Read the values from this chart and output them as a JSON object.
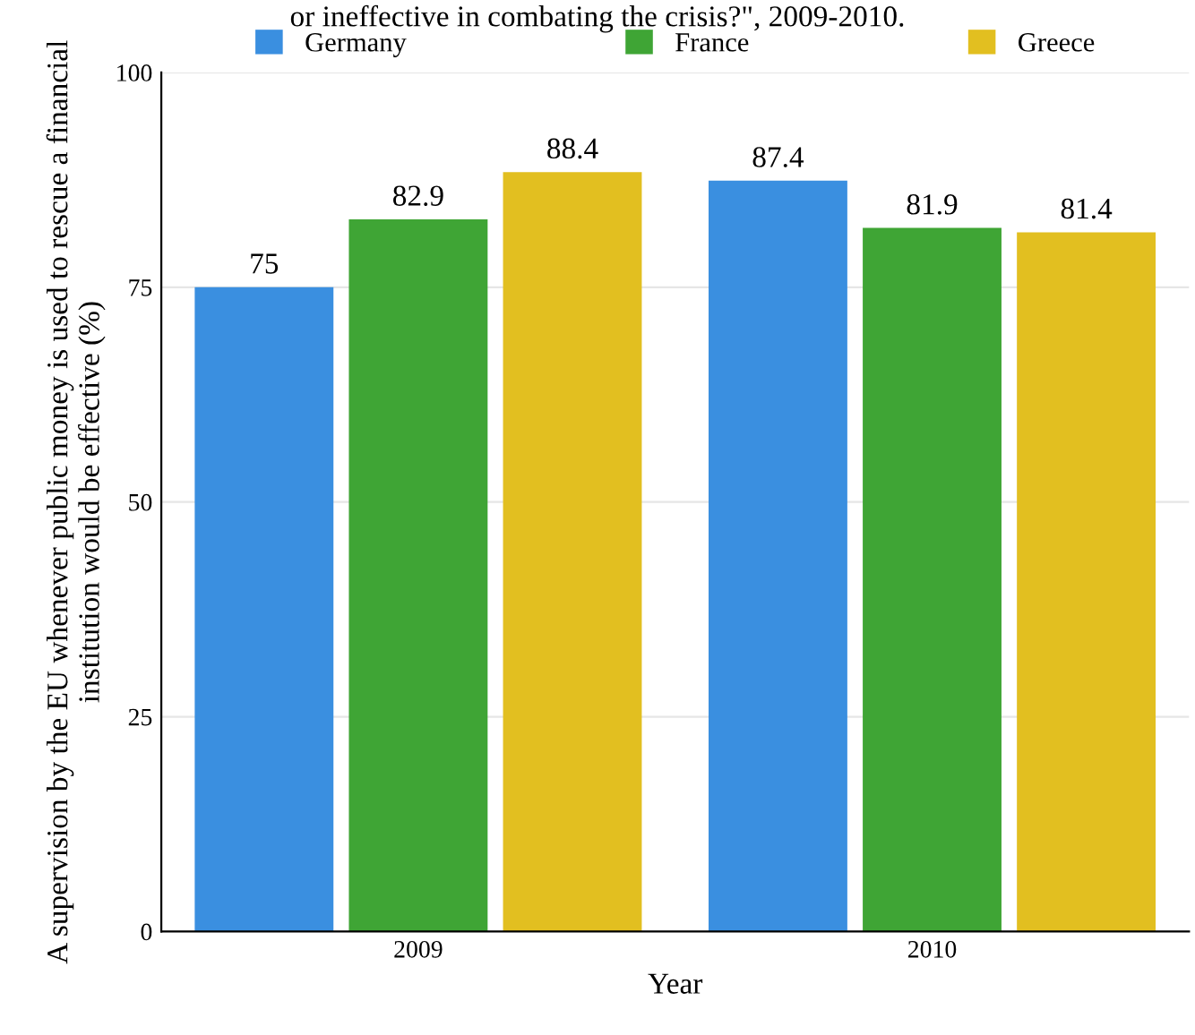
{
  "chart_data": {
    "type": "bar",
    "title": "or ineffective in combating the crisis?\", 2009-2010.",
    "xlabel": "Year",
    "ylabel": "A supervision by the EU whenever public money is used to rescue a financial institution would be effective (%)",
    "categories": [
      "2009",
      "2010"
    ],
    "series": [
      {
        "name": "Germany",
        "color": "#3a8fe0",
        "values": [
          75,
          87.4
        ]
      },
      {
        "name": "France",
        "color": "#3fa535",
        "values": [
          82.9,
          81.9
        ]
      },
      {
        "name": "Greece",
        "color": "#e2bf20",
        "values": [
          88.4,
          81.4
        ]
      }
    ],
    "ylim": [
      0,
      100
    ],
    "yticks": [
      0,
      25,
      50,
      75,
      100
    ],
    "grid": "y",
    "legend": "top",
    "data_labels": true
  }
}
